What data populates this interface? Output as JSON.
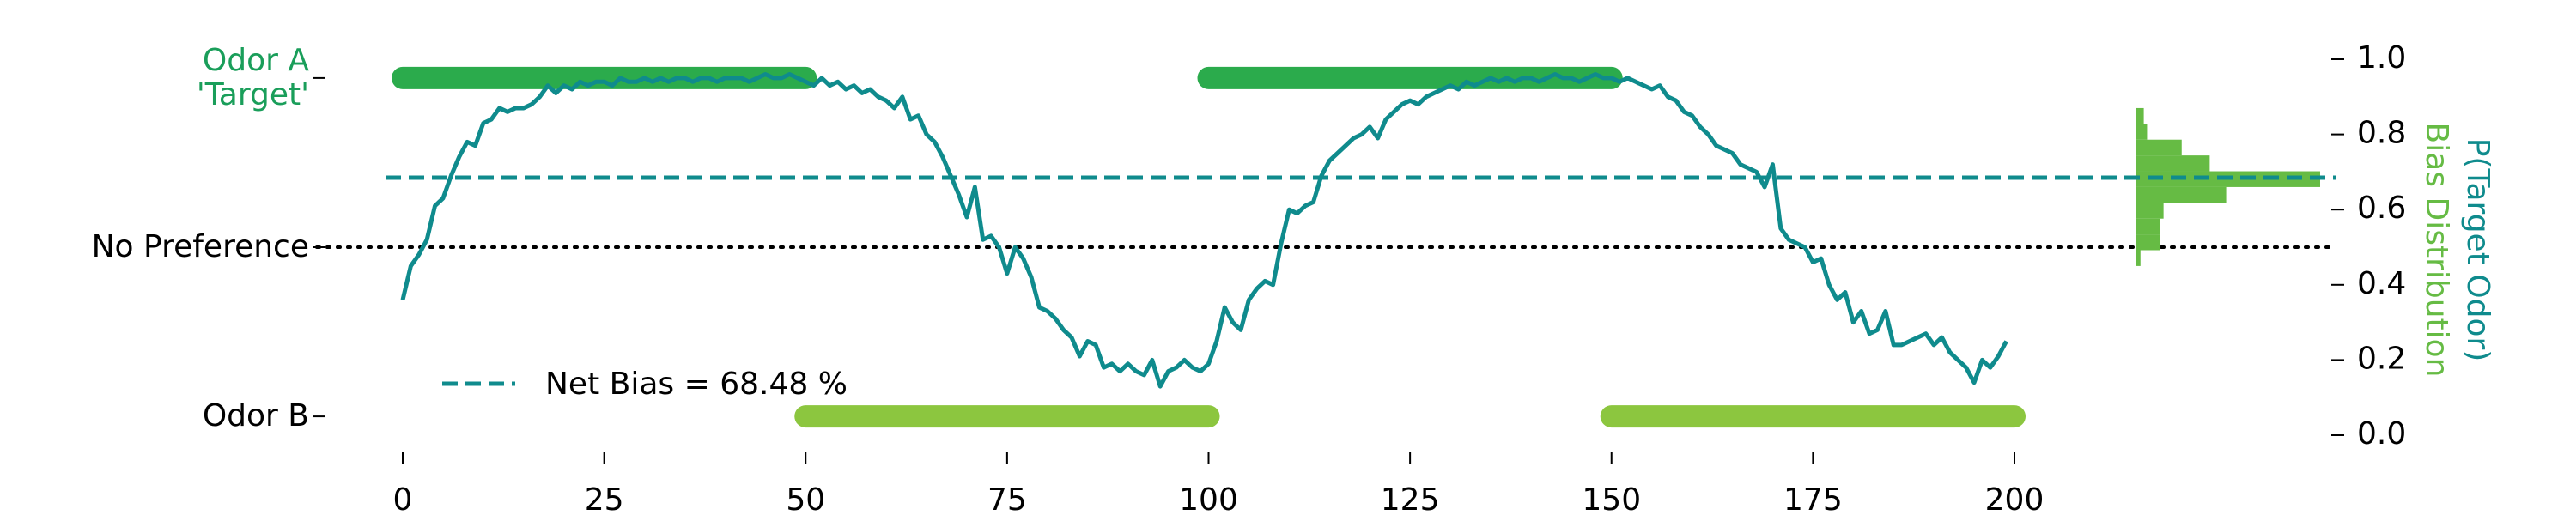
{
  "chart_data": {
    "type": "line",
    "ylabel": "P(Target Odor)",
    "hist_label": "Bias Distribution",
    "xlim": [
      0,
      200
    ],
    "xticks": [
      0,
      25,
      50,
      75,
      100,
      125,
      150,
      175,
      200
    ],
    "ylim": [
      0,
      1
    ],
    "yticks": [
      {
        "value": 0,
        "label": "0.0"
      },
      0.2,
      0.4,
      0.6,
      0.8,
      {
        "value": 1,
        "label": "1.0"
      }
    ],
    "left_ticks": [
      {
        "value": 0.95,
        "label": "Odor A\n'Target'"
      },
      {
        "value": 0.5,
        "label": "No Preference"
      },
      {
        "value": 0.05,
        "label": "Odor B"
      }
    ],
    "series": [
      {
        "name": "P(Target Odor)",
        "color": "#0f8b8d",
        "values": [
          0.36,
          0.45,
          0.48,
          0.52,
          0.61,
          0.63,
          0.69,
          0.74,
          0.78,
          0.77,
          0.83,
          0.84,
          0.87,
          0.86,
          0.87,
          0.87,
          0.88,
          0.9,
          0.93,
          0.91,
          0.93,
          0.92,
          0.94,
          0.93,
          0.94,
          0.94,
          0.93,
          0.95,
          0.94,
          0.94,
          0.95,
          0.94,
          0.95,
          0.94,
          0.95,
          0.95,
          0.94,
          0.95,
          0.95,
          0.94,
          0.95,
          0.95,
          0.95,
          0.94,
          0.95,
          0.96,
          0.95,
          0.95,
          0.96,
          0.95,
          0.94,
          0.93,
          0.95,
          0.93,
          0.94,
          0.92,
          0.93,
          0.91,
          0.92,
          0.9,
          0.89,
          0.87,
          0.9,
          0.84,
          0.85,
          0.8,
          0.78,
          0.74,
          0.69,
          0.64,
          0.58,
          0.66,
          0.52,
          0.53,
          0.5,
          0.43,
          0.5,
          0.47,
          0.42,
          0.34,
          0.33,
          0.31,
          0.28,
          0.26,
          0.21,
          0.25,
          0.24,
          0.18,
          0.19,
          0.17,
          0.19,
          0.17,
          0.16,
          0.2,
          0.13,
          0.17,
          0.18,
          0.2,
          0.18,
          0.17,
          0.19,
          0.25,
          0.34,
          0.3,
          0.28,
          0.36,
          0.39,
          0.41,
          0.4,
          0.51,
          0.6,
          0.59,
          0.61,
          0.62,
          0.69,
          0.73,
          0.75,
          0.77,
          0.79,
          0.8,
          0.82,
          0.79,
          0.84,
          0.86,
          0.88,
          0.89,
          0.88,
          0.9,
          0.91,
          0.92,
          0.93,
          0.92,
          0.94,
          0.93,
          0.94,
          0.95,
          0.94,
          0.95,
          0.94,
          0.95,
          0.95,
          0.94,
          0.95,
          0.96,
          0.95,
          0.95,
          0.94,
          0.95,
          0.96,
          0.95,
          0.95,
          0.94,
          0.95,
          0.94,
          0.93,
          0.92,
          0.93,
          0.9,
          0.89,
          0.86,
          0.85,
          0.82,
          0.8,
          0.77,
          0.76,
          0.75,
          0.72,
          0.71,
          0.7,
          0.66,
          0.72,
          0.55,
          0.52,
          0.51,
          0.5,
          0.46,
          0.47,
          0.4,
          0.36,
          0.38,
          0.3,
          0.33,
          0.27,
          0.28,
          0.33,
          0.24,
          0.24,
          0.25,
          0.26,
          0.27,
          0.24,
          0.26,
          0.22,
          0.2,
          0.18,
          0.14,
          0.2,
          0.18,
          0.21,
          0.25
        ]
      }
    ],
    "odor_bands": [
      {
        "y": 0.95,
        "x": [
          0,
          50
        ],
        "color": "#2bab4c"
      },
      {
        "y": 0.05,
        "x": [
          50,
          100
        ],
        "color": "#8cc63f"
      },
      {
        "y": 0.95,
        "x": [
          100,
          150
        ],
        "color": "#2bab4c"
      },
      {
        "y": 0.05,
        "x": [
          150,
          200
        ],
        "color": "#8cc63f"
      }
    ],
    "net_bias": {
      "value": 0.6848,
      "label": "Net Bias = 68.48 %",
      "color": "#0f8b8d"
    },
    "chance": 0.5,
    "histogram": {
      "color": "#66bb44",
      "bins": [
        0.45,
        0.492,
        0.534,
        0.576,
        0.618,
        0.66,
        0.702,
        0.744,
        0.786,
        0.828,
        0.87
      ],
      "counts": [
        3,
        15,
        15,
        17,
        55,
        112,
        45,
        28,
        7,
        5
      ]
    }
  }
}
